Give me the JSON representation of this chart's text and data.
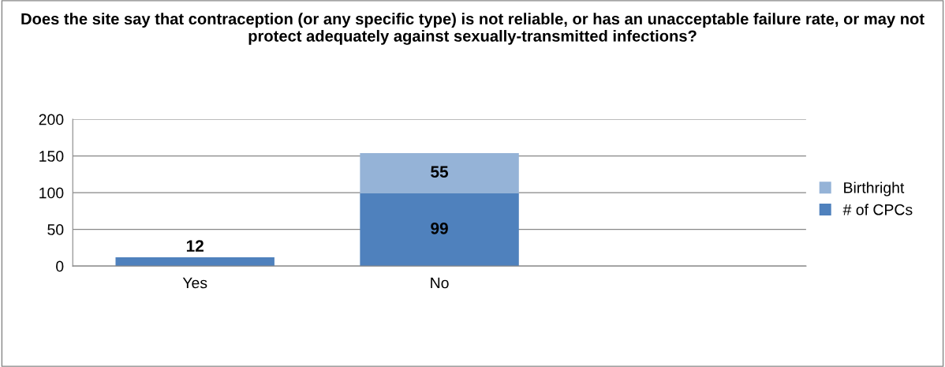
{
  "chart_data": {
    "type": "bar",
    "stacked": true,
    "title": "Does the site say that contraception (or any specific type) is not reliable, or has an unacceptable failure rate, or may not protect adequately against sexually-transmitted infections?",
    "categories": [
      "Yes",
      "No",
      null
    ],
    "series": [
      {
        "name": "# of CPCs",
        "color": "#4f81bd",
        "values": [
          12,
          99,
          null
        ]
      },
      {
        "name": "Birthright",
        "color": "#95b3d7",
        "values": [
          null,
          55,
          null
        ]
      }
    ],
    "ylim": [
      0,
      200
    ],
    "yticks": [
      0,
      50,
      100,
      150,
      200
    ],
    "grid": "y",
    "legend": "right",
    "data_labels": true
  }
}
